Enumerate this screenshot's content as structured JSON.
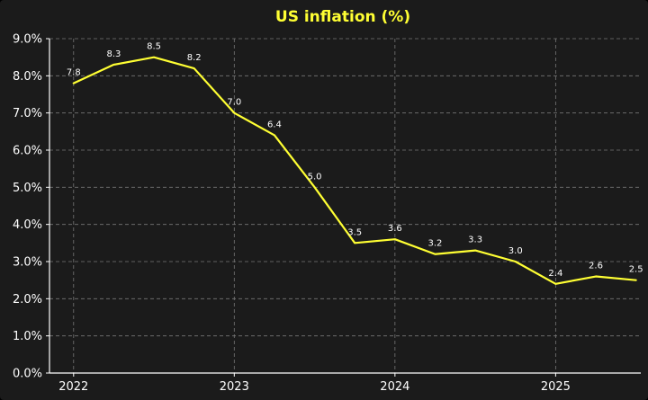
{
  "chart_data": {
    "type": "line",
    "title": "US inflation (%)",
    "xlabel": "",
    "ylabel": "",
    "x": [
      2022.0,
      2022.25,
      2022.5,
      2022.75,
      2023.0,
      2023.25,
      2023.5,
      2023.75,
      2024.0,
      2024.25,
      2024.5,
      2024.75,
      2025.0,
      2025.25,
      2025.5
    ],
    "series": [
      {
        "values": [
          7.8,
          8.3,
          8.5,
          8.2,
          7.0,
          6.4,
          5.0,
          3.5,
          3.6,
          3.2,
          3.3,
          3.0,
          2.4,
          2.6,
          2.5
        ],
        "data_labels": [
          "7.8",
          "8.3",
          "8.5",
          "8.2",
          "7.0",
          "6.4",
          "5.0",
          "3.5",
          "3.6",
          "3.2",
          "3.3",
          "3.0",
          "2.4",
          "2.6",
          "2.5"
        ],
        "color": "#ffff33"
      }
    ],
    "xlim": [
      2021.85,
      2025.53
    ],
    "ylim": [
      0,
      9
    ],
    "xticks": [
      2022,
      2023,
      2024,
      2025
    ],
    "xtick_labels": [
      "2022",
      "2023",
      "2024",
      "2025"
    ],
    "yticks": [
      0,
      1,
      2,
      3,
      4,
      5,
      6,
      7,
      8,
      9
    ],
    "ytick_labels": [
      "0.0%",
      "1.0%",
      "2.0%",
      "3.0%",
      "4.0%",
      "5.0%",
      "6.0%",
      "7.0%",
      "8.0%",
      "9.0%"
    ],
    "grid": true,
    "colors": {
      "background": "#1b1b1b",
      "line": "#ffff33",
      "title": "#ffff33",
      "text": "#ffffff",
      "axis": "#ffffff",
      "grid": "#777777"
    }
  }
}
